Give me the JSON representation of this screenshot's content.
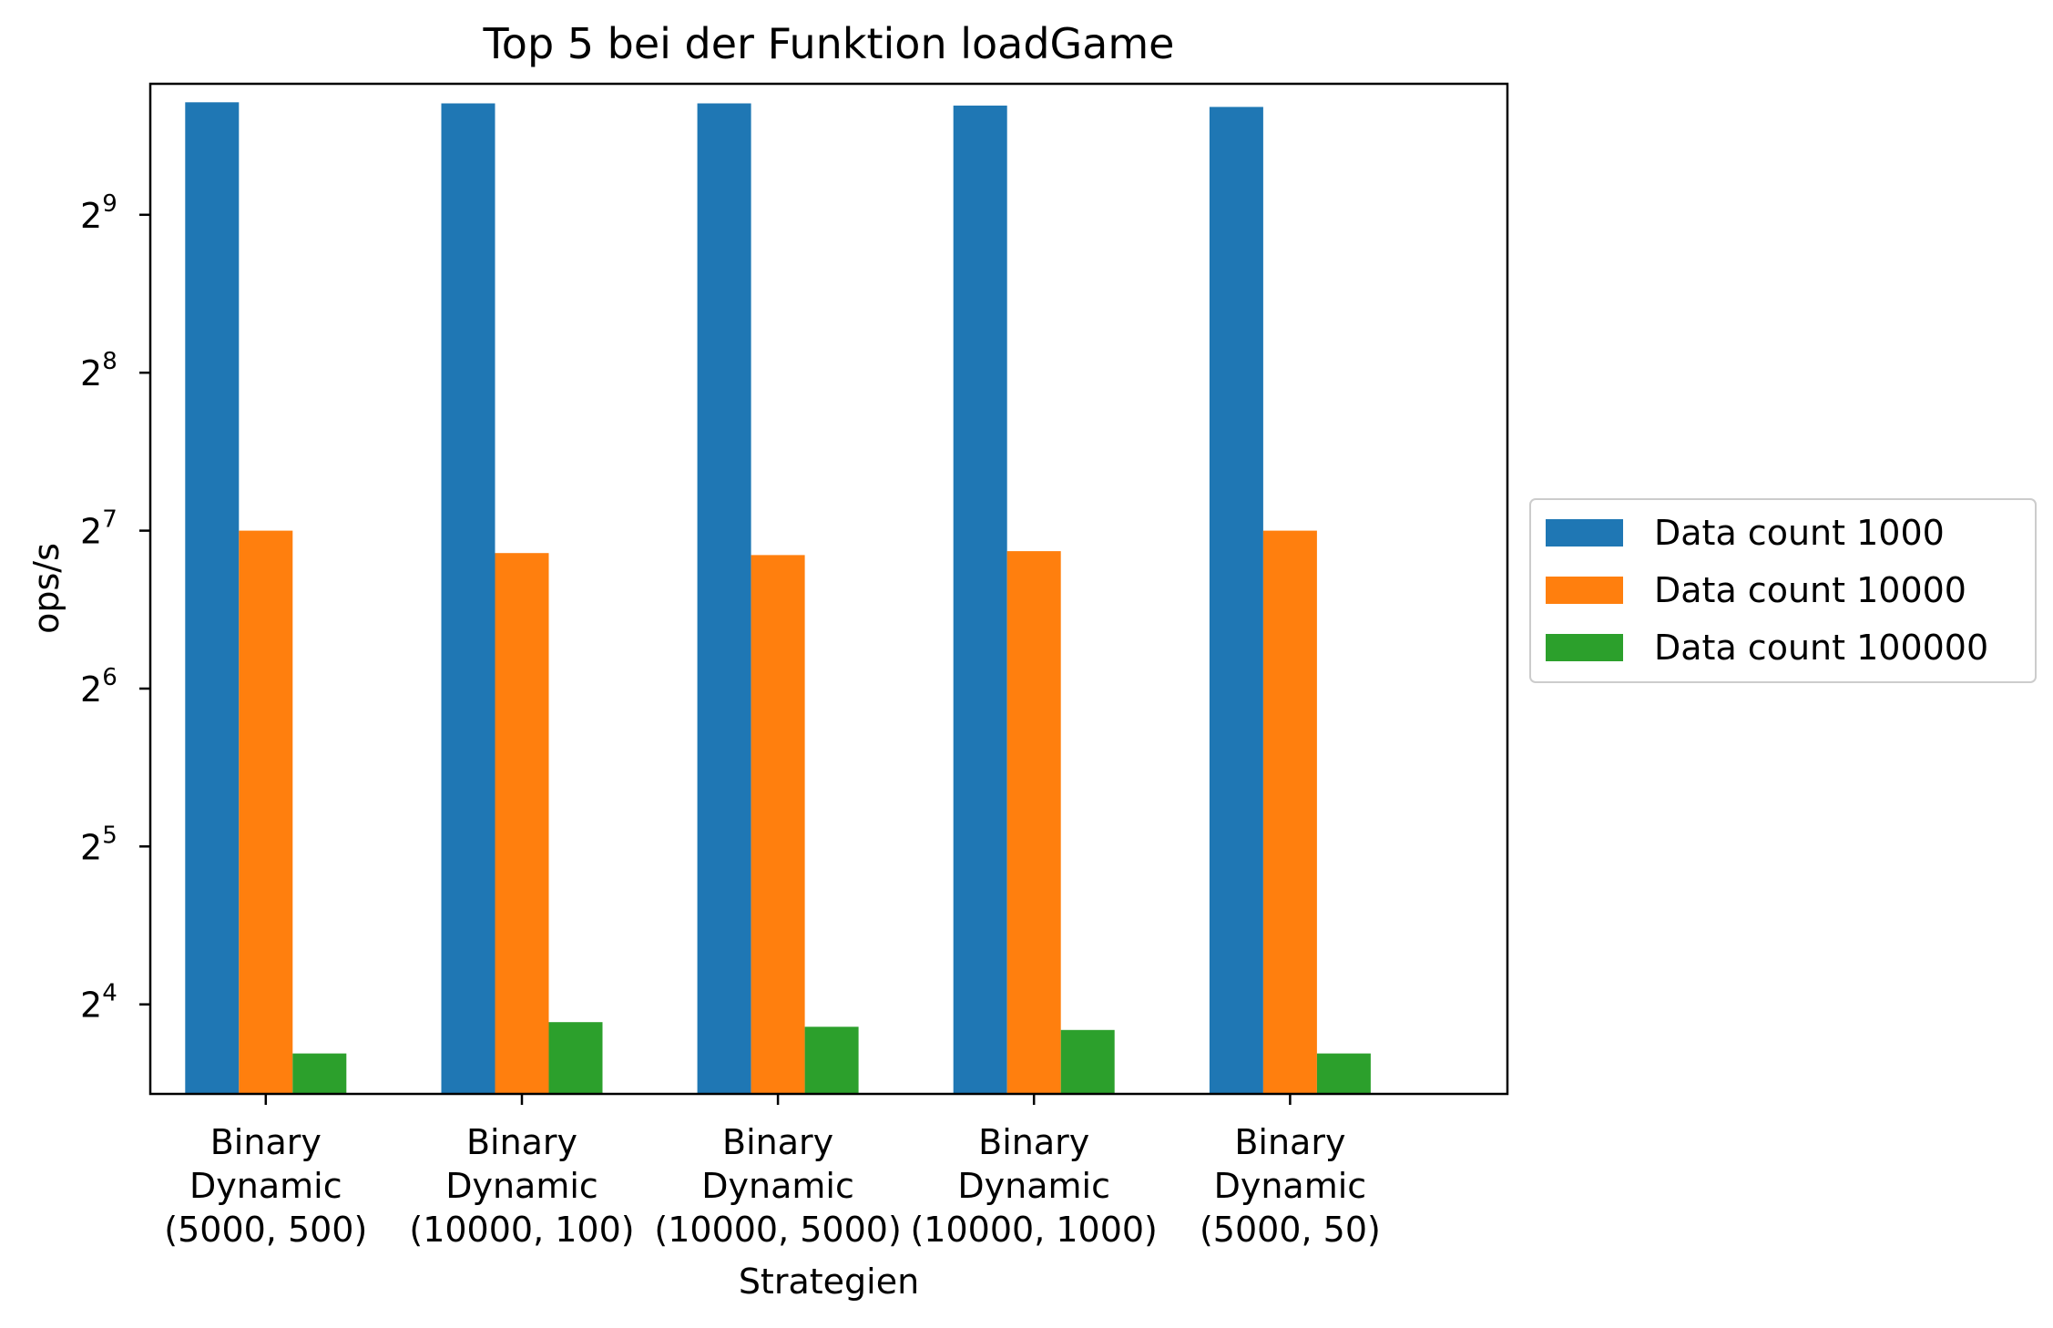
{
  "chart_data": {
    "type": "bar",
    "title": "Top 5 bei der Funktion loadGame",
    "xlabel": "Strategien",
    "ylabel": "ops/s",
    "yscale": "log2",
    "ylim": [
      10.8,
      910
    ],
    "yticks": [
      {
        "value": 16,
        "base": "2",
        "exp": "4"
      },
      {
        "value": 32,
        "base": "2",
        "exp": "5"
      },
      {
        "value": 64,
        "base": "2",
        "exp": "6"
      },
      {
        "value": 128,
        "base": "2",
        "exp": "7"
      },
      {
        "value": 256,
        "base": "2",
        "exp": "8"
      },
      {
        "value": 512,
        "base": "2",
        "exp": "9"
      }
    ],
    "categories": [
      [
        "Binary",
        "Dynamic",
        "(5000, 500)"
      ],
      [
        "Binary",
        "Dynamic",
        "(10000, 100)"
      ],
      [
        "Binary",
        "Dynamic",
        "(10000, 5000)"
      ],
      [
        "Binary",
        "Dynamic",
        "(10000, 1000)"
      ],
      [
        "Binary",
        "Dynamic",
        "(5000, 50)"
      ]
    ],
    "series": [
      {
        "name": "Data count 1000",
        "color": "#1f77b4",
        "values": [
          839,
          835,
          835,
          827,
          822
        ]
      },
      {
        "name": "Data count 10000",
        "color": "#ff7f0e",
        "values": [
          128,
          116,
          115,
          117,
          128
        ]
      },
      {
        "name": "Data count 100000",
        "color": "#2ca02c",
        "values": [
          12.9,
          14.8,
          14.5,
          14.3,
          12.9
        ]
      }
    ],
    "legend": "center-right",
    "grid": false
  }
}
